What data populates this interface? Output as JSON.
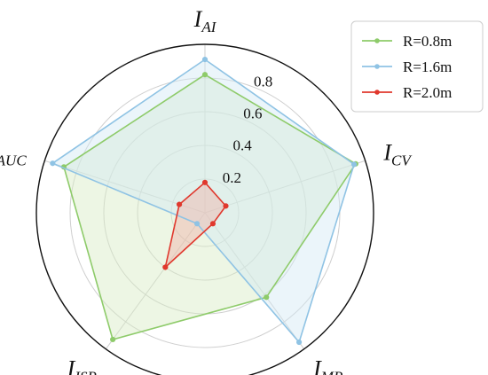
{
  "chart_data": {
    "type": "radar",
    "axes": [
      {
        "main": "I",
        "sub": "AI"
      },
      {
        "main": "I",
        "sub": "CV"
      },
      {
        "main": "I",
        "sub": "MP"
      },
      {
        "main": "I",
        "sub": "ISR"
      },
      {
        "main": "I",
        "sub": "AUC"
      }
    ],
    "rlim": [
      0,
      1.0
    ],
    "ticks": [
      "0.2",
      "0.4",
      "0.6",
      "0.8"
    ],
    "tick_values": [
      0.2,
      0.4,
      0.6,
      0.8
    ],
    "series": [
      {
        "name": "R=0.8m",
        "color": "#8ecb6a",
        "fill": "#d6ecc4",
        "values": [
          0.82,
          0.94,
          0.62,
          0.93,
          0.88
        ]
      },
      {
        "name": "R=1.6m",
        "color": "#8fc3e4",
        "fill": "#d3e8f5",
        "values": [
          0.91,
          0.93,
          0.95,
          0.08,
          0.95
        ]
      },
      {
        "name": "R=2.0m",
        "color": "#e0382d",
        "fill": "#f0b2a8",
        "values": [
          0.18,
          0.13,
          0.08,
          0.4,
          0.16
        ]
      }
    ],
    "legend_position": "top-right",
    "grid": true
  }
}
